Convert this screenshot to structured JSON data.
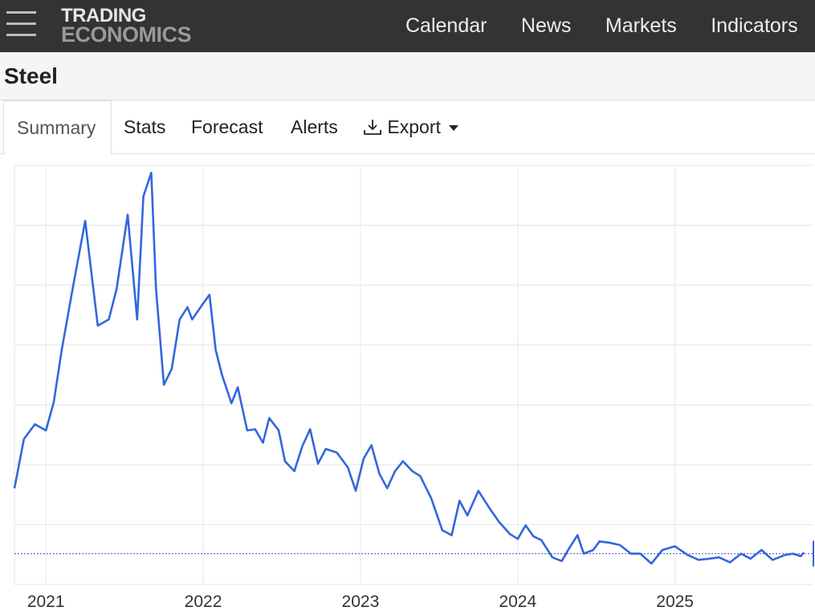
{
  "header": {
    "logo_line1": "TRADING",
    "logo_line2": "ECONOMICS",
    "nav": [
      "Calendar",
      "News",
      "Markets",
      "Indicators"
    ]
  },
  "page": {
    "title": "Steel"
  },
  "tabs": {
    "summary": "Summary",
    "stats": "Stats",
    "forecast": "Forecast",
    "alerts": "Alerts",
    "export": "Export"
  },
  "colors": {
    "line": "#3366dd",
    "header_bg": "#333333"
  },
  "chart_data": {
    "type": "line",
    "title": "Steel",
    "xlabel": "",
    "ylabel": "",
    "xlim": [
      2020.8,
      2025.88
    ],
    "ylim": [
      2800,
      6200
    ],
    "x_ticks": [
      "2021",
      "2022",
      "2023",
      "2024",
      "2025"
    ],
    "reference_line": 3050,
    "series": [
      {
        "name": "Steel",
        "x": [
          2020.8,
          2020.86,
          2020.93,
          2021.0,
          2021.05,
          2021.1,
          2021.17,
          2021.25,
          2021.33,
          2021.4,
          2021.45,
          2021.52,
          2021.58,
          2021.62,
          2021.67,
          2021.7,
          2021.75,
          2021.8,
          2021.85,
          2021.9,
          2021.93,
          2022.0,
          2022.04,
          2022.08,
          2022.12,
          2022.18,
          2022.22,
          2022.28,
          2022.33,
          2022.38,
          2022.42,
          2022.48,
          2022.52,
          2022.58,
          2022.63,
          2022.68,
          2022.73,
          2022.78,
          2022.85,
          2022.92,
          2022.97,
          2023.02,
          2023.07,
          2023.12,
          2023.17,
          2023.22,
          2023.27,
          2023.33,
          2023.38,
          2023.45,
          2023.52,
          2023.58,
          2023.63,
          2023.68,
          2023.75,
          2023.82,
          2023.88,
          2023.95,
          2024.0,
          2024.05,
          2024.1,
          2024.15,
          2024.22,
          2024.28,
          2024.33,
          2024.38,
          2024.42,
          2024.48,
          2024.52,
          2024.58,
          2024.65,
          2024.72,
          2024.78,
          2024.85,
          2024.92,
          2025.0,
          2025.08,
          2025.15,
          2025.22,
          2025.28,
          2025.35,
          2025.42,
          2025.48,
          2025.55,
          2025.62,
          2025.7,
          2025.75,
          2025.8,
          2025.82
        ],
        "values": [
          3580,
          3980,
          4100,
          4050,
          4280,
          4700,
          5200,
          5750,
          4900,
          4950,
          5200,
          5800,
          4950,
          5950,
          6140,
          5200,
          4420,
          4550,
          4950,
          5050,
          4950,
          5080,
          5150,
          4700,
          4500,
          4270,
          4400,
          4050,
          4060,
          3950,
          4150,
          4050,
          3800,
          3720,
          3920,
          4060,
          3780,
          3900,
          3870,
          3750,
          3560,
          3820,
          3930,
          3700,
          3580,
          3720,
          3800,
          3720,
          3680,
          3500,
          3240,
          3200,
          3480,
          3360,
          3560,
          3420,
          3310,
          3210,
          3170,
          3280,
          3190,
          3160,
          3020,
          2990,
          3100,
          3200,
          3050,
          3080,
          3150,
          3140,
          3120,
          3050,
          3050,
          2970,
          3080,
          3110,
          3040,
          3000,
          3010,
          3020,
          2980,
          3050,
          3010,
          3080,
          3000,
          3040,
          3050,
          3030,
          3060
        ]
      }
    ]
  }
}
